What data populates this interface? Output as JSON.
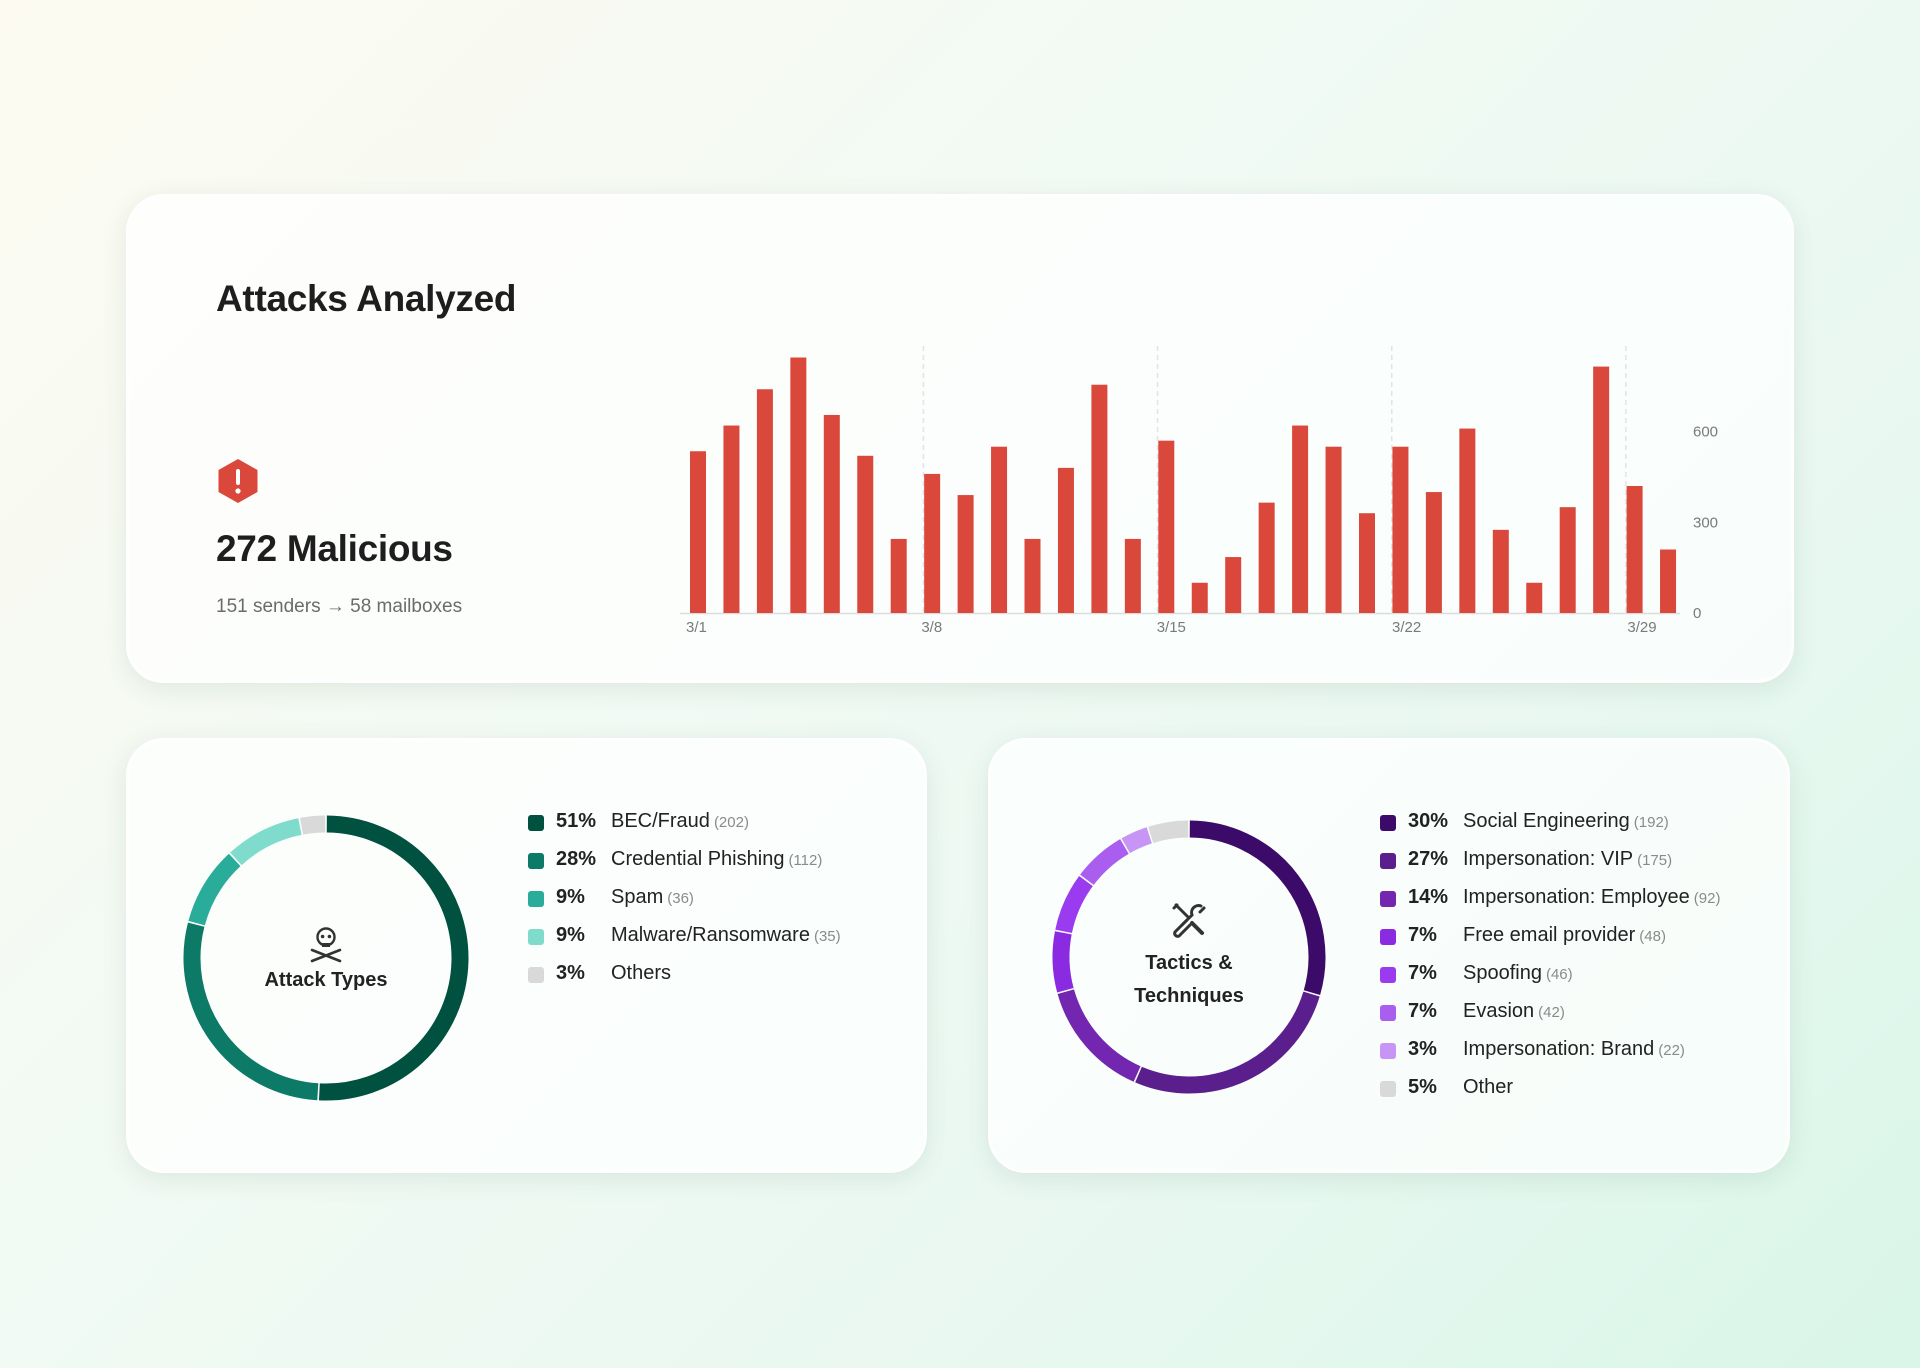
{
  "attacks_card": {
    "title": "Attacks Analyzed",
    "alert_icon": "alert-hexagon-icon",
    "malicious_label": "272 Malicious",
    "senders_text": "151 senders → 58 mailboxes",
    "bar_color": "#d9483b"
  },
  "attack_types_card": {
    "center_icon": "skull-crossbones-icon",
    "center_label": "Attack Types"
  },
  "tactics_card": {
    "center_icon": "tools-icon",
    "center_label_line1": "Tactics &",
    "center_label_line2": "Techniques"
  },
  "chart_data": [
    {
      "type": "bar",
      "x_ticks": [
        "3/1",
        "3/8",
        "3/15",
        "3/22",
        "3/29"
      ],
      "y_ticks": [
        "0",
        "300",
        "600"
      ],
      "ylim": [
        0,
        850
      ],
      "values": [
        535,
        620,
        740,
        845,
        655,
        520,
        245,
        460,
        390,
        550,
        245,
        480,
        755,
        245,
        570,
        100,
        185,
        365,
        620,
        550,
        330,
        550,
        400,
        610,
        275,
        100,
        350,
        815,
        420,
        210
      ],
      "color": "#d9483b",
      "grid": "vertical dashed at week starts",
      "y_axis_position": "right"
    },
    {
      "type": "pie",
      "donut": true,
      "slices": [
        {
          "percent": "51%",
          "label": "BEC/Fraud",
          "count": "(202)",
          "value": 202,
          "color": "#00513f"
        },
        {
          "percent": "28%",
          "label": "Credential Phishing",
          "count": "(112)",
          "value": 112,
          "color": "#0c7a67"
        },
        {
          "percent": "9%",
          "label": "Spam",
          "count": "(36)",
          "value": 36,
          "color": "#2aac9a"
        },
        {
          "percent": "9%",
          "label": "Malware/Ransomware",
          "count": "(35)",
          "value": 35,
          "color": "#7fdccc"
        },
        {
          "percent": "3%",
          "label": "Others",
          "count": "",
          "value": 12,
          "color": "#d9d9d9"
        }
      ]
    },
    {
      "type": "pie",
      "donut": true,
      "slices": [
        {
          "percent": "30%",
          "label": "Social Engineering",
          "count": "(192)",
          "value": 192,
          "color": "#3c0a69"
        },
        {
          "percent": "27%",
          "label": "Impersonation: VIP",
          "count": "(175)",
          "value": 175,
          "color": "#5a1f8c"
        },
        {
          "percent": "14%",
          "label": "Impersonation: Employee",
          "count": "(92)",
          "value": 92,
          "color": "#7327b0"
        },
        {
          "percent": "7%",
          "label": "Free email provider",
          "count": "(48)",
          "value": 48,
          "color": "#8a2be2"
        },
        {
          "percent": "7%",
          "label": "Spoofing",
          "count": "(46)",
          "value": 46,
          "color": "#9b3bef"
        },
        {
          "percent": "7%",
          "label": "Evasion",
          "count": "(42)",
          "value": 42,
          "color": "#a95ef0"
        },
        {
          "percent": "3%",
          "label": "Impersonation: Brand",
          "count": "(22)",
          "value": 22,
          "color": "#c795f5"
        },
        {
          "percent": "5%",
          "label": "Other",
          "count": "",
          "value": 32,
          "color": "#d9d9d9"
        }
      ]
    }
  ]
}
